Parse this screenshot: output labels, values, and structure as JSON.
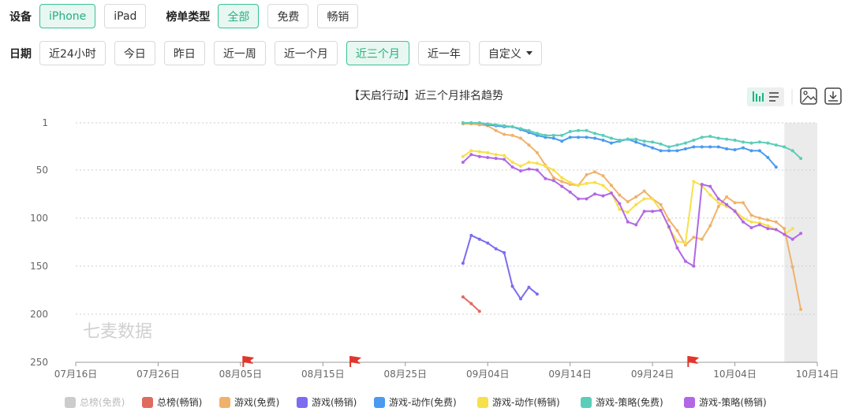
{
  "filters": {
    "device_label": "设备",
    "devices": [
      {
        "label": "iPhone",
        "active": true
      },
      {
        "label": "iPad",
        "active": false
      }
    ],
    "list_type_label": "榜单类型",
    "list_types": [
      {
        "label": "全部",
        "active": true
      },
      {
        "label": "免费",
        "active": false
      },
      {
        "label": "畅销",
        "active": false
      }
    ],
    "date_label": "日期",
    "dates": [
      {
        "label": "近24小时",
        "active": false
      },
      {
        "label": "今日",
        "active": false
      },
      {
        "label": "昨日",
        "active": false
      },
      {
        "label": "近一周",
        "active": false
      },
      {
        "label": "近一个月",
        "active": false
      },
      {
        "label": "近三个月",
        "active": true
      },
      {
        "label": "近一年",
        "active": false
      }
    ],
    "custom_label": "自定义"
  },
  "colors": {
    "accent": "#37c293",
    "gridline": "#cccccc",
    "shade": "#ebebeb",
    "flag": "#e0362c"
  },
  "icons": [
    "bar-chart-icon",
    "list-icon",
    "image-download-icon",
    "download-icon",
    "flag-icon"
  ],
  "chart_data": {
    "type": "line",
    "title": "【天启行动】近三个月排名趋势",
    "xlabel": "",
    "ylabel": "",
    "y_inverted": true,
    "ylim": [
      1,
      250
    ],
    "y_ticks": [
      "1",
      "50",
      "100",
      "150",
      "200",
      "250"
    ],
    "x_range": [
      "2024-07-16",
      "2024-10-14"
    ],
    "x_ticks": [
      "07月16日",
      "07月26日",
      "08月05日",
      "08月15日",
      "08月25日",
      "09月04日",
      "09月14日",
      "09月24日",
      "10月04日",
      "10月14日"
    ],
    "shaded_region": [
      "2024-10-10",
      "2024-10-14"
    ],
    "flags": [
      "2024-08-06",
      "2024-08-19",
      "2024-09-29"
    ],
    "grid": true,
    "legend_position": "bottom",
    "series": [
      {
        "name": "总榜(免费)",
        "color": "#cccccc",
        "disabled": true,
        "points": []
      },
      {
        "name": "总榜(畅销)",
        "color": "#e06a5e",
        "points": [
          [
            "2024-09-01",
            182
          ],
          [
            "2024-09-02",
            189
          ],
          [
            "2024-09-03",
            197
          ]
        ]
      },
      {
        "name": "游戏(免费)",
        "color": "#f0b26b",
        "points": [
          [
            "2024-09-01",
            2
          ],
          [
            "2024-09-02",
            2
          ],
          [
            "2024-09-03",
            3
          ],
          [
            "2024-09-04",
            4
          ],
          [
            "2024-09-05",
            9
          ],
          [
            "2024-09-06",
            13
          ],
          [
            "2024-09-07",
            14
          ],
          [
            "2024-09-08",
            17
          ],
          [
            "2024-09-09",
            24
          ],
          [
            "2024-09-10",
            32
          ],
          [
            "2024-09-11",
            45
          ],
          [
            "2024-09-12",
            58
          ],
          [
            "2024-09-13",
            62
          ],
          [
            "2024-09-14",
            65
          ],
          [
            "2024-09-15",
            66
          ],
          [
            "2024-09-16",
            55
          ],
          [
            "2024-09-17",
            52
          ],
          [
            "2024-09-18",
            56
          ],
          [
            "2024-09-19",
            66
          ],
          [
            "2024-09-20",
            76
          ],
          [
            "2024-09-21",
            83
          ],
          [
            "2024-09-22",
            78
          ],
          [
            "2024-09-23",
            72
          ],
          [
            "2024-09-24",
            80
          ],
          [
            "2024-09-25",
            86
          ],
          [
            "2024-09-26",
            102
          ],
          [
            "2024-09-27",
            113
          ],
          [
            "2024-09-28",
            128
          ],
          [
            "2024-09-29",
            120
          ],
          [
            "2024-09-30",
            122
          ],
          [
            "2024-10-01",
            108
          ],
          [
            "2024-10-02",
            88
          ],
          [
            "2024-10-03",
            78
          ],
          [
            "2024-10-04",
            84
          ],
          [
            "2024-10-05",
            84
          ],
          [
            "2024-10-06",
            97
          ],
          [
            "2024-10-07",
            100
          ],
          [
            "2024-10-08",
            102
          ],
          [
            "2024-10-09",
            104
          ],
          [
            "2024-10-10",
            111
          ],
          [
            "2024-10-11",
            151
          ],
          [
            "2024-10-12",
            195
          ]
        ]
      },
      {
        "name": "游戏(畅销)",
        "color": "#7b6cf0",
        "points": [
          [
            "2024-09-01",
            147
          ],
          [
            "2024-09-02",
            118
          ],
          [
            "2024-09-03",
            122
          ],
          [
            "2024-09-04",
            126
          ],
          [
            "2024-09-05",
            132
          ],
          [
            "2024-09-06",
            136
          ],
          [
            "2024-09-07",
            171
          ],
          [
            "2024-09-08",
            184
          ],
          [
            "2024-09-09",
            172
          ],
          [
            "2024-09-10",
            179
          ]
        ]
      },
      {
        "name": "游戏-动作(免费)",
        "color": "#4a9af0",
        "points": [
          [
            "2024-09-01",
            1
          ],
          [
            "2024-09-02",
            1
          ],
          [
            "2024-09-03",
            1
          ],
          [
            "2024-09-04",
            3
          ],
          [
            "2024-09-05",
            4
          ],
          [
            "2024-09-06",
            5
          ],
          [
            "2024-09-07",
            5
          ],
          [
            "2024-09-08",
            8
          ],
          [
            "2024-09-09",
            11
          ],
          [
            "2024-09-10",
            14
          ],
          [
            "2024-09-11",
            16
          ],
          [
            "2024-09-12",
            17
          ],
          [
            "2024-09-13",
            20
          ],
          [
            "2024-09-14",
            16
          ],
          [
            "2024-09-15",
            16
          ],
          [
            "2024-09-16",
            16
          ],
          [
            "2024-09-17",
            17
          ],
          [
            "2024-09-18",
            19
          ],
          [
            "2024-09-19",
            22
          ],
          [
            "2024-09-20",
            20
          ],
          [
            "2024-09-21",
            18
          ],
          [
            "2024-09-22",
            21
          ],
          [
            "2024-09-23",
            24
          ],
          [
            "2024-09-24",
            27
          ],
          [
            "2024-09-25",
            30
          ],
          [
            "2024-09-26",
            30
          ],
          [
            "2024-09-27",
            30
          ],
          [
            "2024-09-28",
            28
          ],
          [
            "2024-09-29",
            26
          ],
          [
            "2024-09-30",
            26
          ],
          [
            "2024-10-01",
            26
          ],
          [
            "2024-10-02",
            26
          ],
          [
            "2024-10-03",
            28
          ],
          [
            "2024-10-04",
            29
          ],
          [
            "2024-10-05",
            27
          ],
          [
            "2024-10-06",
            30
          ],
          [
            "2024-10-07",
            30
          ],
          [
            "2024-10-08",
            37
          ],
          [
            "2024-10-09",
            47
          ]
        ]
      },
      {
        "name": "游戏-动作(畅销)",
        "color": "#f7e04a",
        "points": [
          [
            "2024-09-01",
            36
          ],
          [
            "2024-09-02",
            30
          ],
          [
            "2024-09-03",
            31
          ],
          [
            "2024-09-04",
            32
          ],
          [
            "2024-09-05",
            34
          ],
          [
            "2024-09-06",
            35
          ],
          [
            "2024-09-07",
            42
          ],
          [
            "2024-09-08",
            46
          ],
          [
            "2024-09-09",
            42
          ],
          [
            "2024-09-10",
            43
          ],
          [
            "2024-09-11",
            46
          ],
          [
            "2024-09-12",
            50
          ],
          [
            "2024-09-13",
            58
          ],
          [
            "2024-09-14",
            63
          ],
          [
            "2024-09-15",
            66
          ],
          [
            "2024-09-16",
            64
          ],
          [
            "2024-09-17",
            63
          ],
          [
            "2024-09-18",
            66
          ],
          [
            "2024-09-19",
            74
          ],
          [
            "2024-09-20",
            91
          ],
          [
            "2024-09-21",
            94
          ],
          [
            "2024-09-22",
            86
          ],
          [
            "2024-09-23",
            80
          ],
          [
            "2024-09-24",
            80
          ],
          [
            "2024-09-25",
            92
          ],
          [
            "2024-09-26",
            110
          ],
          [
            "2024-09-27",
            124
          ],
          [
            "2024-09-28",
            126
          ],
          [
            "2024-09-29",
            62
          ],
          [
            "2024-09-30",
            66
          ],
          [
            "2024-10-01",
            76
          ],
          [
            "2024-10-02",
            84
          ],
          [
            "2024-10-03",
            88
          ],
          [
            "2024-10-04",
            92
          ],
          [
            "2024-10-05",
            100
          ],
          [
            "2024-10-06",
            104
          ],
          [
            "2024-10-07",
            105
          ],
          [
            "2024-10-08",
            108
          ],
          [
            "2024-10-09",
            112
          ],
          [
            "2024-10-10",
            117
          ],
          [
            "2024-10-11",
            111
          ]
        ]
      },
      {
        "name": "游戏-策略(免费)",
        "color": "#5ccdb9",
        "points": [
          [
            "2024-09-01",
            1
          ],
          [
            "2024-09-02",
            1
          ],
          [
            "2024-09-03",
            1
          ],
          [
            "2024-09-04",
            2
          ],
          [
            "2024-09-05",
            3
          ],
          [
            "2024-09-06",
            4
          ],
          [
            "2024-09-07",
            5
          ],
          [
            "2024-09-08",
            7
          ],
          [
            "2024-09-09",
            9
          ],
          [
            "2024-09-10",
            12
          ],
          [
            "2024-09-11",
            14
          ],
          [
            "2024-09-12",
            14
          ],
          [
            "2024-09-13",
            14
          ],
          [
            "2024-09-14",
            10
          ],
          [
            "2024-09-15",
            9
          ],
          [
            "2024-09-16",
            9
          ],
          [
            "2024-09-17",
            12
          ],
          [
            "2024-09-18",
            14
          ],
          [
            "2024-09-19",
            17
          ],
          [
            "2024-09-20",
            19
          ],
          [
            "2024-09-21",
            18
          ],
          [
            "2024-09-22",
            18
          ],
          [
            "2024-09-23",
            20
          ],
          [
            "2024-09-24",
            21
          ],
          [
            "2024-09-25",
            23
          ],
          [
            "2024-09-26",
            26
          ],
          [
            "2024-09-27",
            24
          ],
          [
            "2024-09-28",
            22
          ],
          [
            "2024-09-29",
            19
          ],
          [
            "2024-09-30",
            16
          ],
          [
            "2024-10-01",
            15
          ],
          [
            "2024-10-02",
            17
          ],
          [
            "2024-10-03",
            18
          ],
          [
            "2024-10-04",
            19
          ],
          [
            "2024-10-05",
            21
          ],
          [
            "2024-10-06",
            22
          ],
          [
            "2024-10-07",
            21
          ],
          [
            "2024-10-08",
            22
          ],
          [
            "2024-10-09",
            24
          ],
          [
            "2024-10-10",
            26
          ],
          [
            "2024-10-11",
            30
          ],
          [
            "2024-10-12",
            38
          ]
        ]
      },
      {
        "name": "游戏-策略(畅销)",
        "color": "#b267e6",
        "points": [
          [
            "2024-09-01",
            42
          ],
          [
            "2024-09-02",
            34
          ],
          [
            "2024-09-03",
            36
          ],
          [
            "2024-09-04",
            37
          ],
          [
            "2024-09-05",
            38
          ],
          [
            "2024-09-06",
            39
          ],
          [
            "2024-09-07",
            47
          ],
          [
            "2024-09-08",
            51
          ],
          [
            "2024-09-09",
            49
          ],
          [
            "2024-09-10",
            50
          ],
          [
            "2024-09-11",
            59
          ],
          [
            "2024-09-12",
            61
          ],
          [
            "2024-09-13",
            67
          ],
          [
            "2024-09-14",
            73
          ],
          [
            "2024-09-15",
            80
          ],
          [
            "2024-09-16",
            80
          ],
          [
            "2024-09-17",
            75
          ],
          [
            "2024-09-18",
            77
          ],
          [
            "2024-09-19",
            74
          ],
          [
            "2024-09-20",
            85
          ],
          [
            "2024-09-21",
            104
          ],
          [
            "2024-09-22",
            107
          ],
          [
            "2024-09-23",
            93
          ],
          [
            "2024-09-24",
            93
          ],
          [
            "2024-09-25",
            92
          ],
          [
            "2024-09-26",
            109
          ],
          [
            "2024-09-27",
            131
          ],
          [
            "2024-09-28",
            145
          ],
          [
            "2024-09-29",
            150
          ],
          [
            "2024-09-30",
            65
          ],
          [
            "2024-10-01",
            67
          ],
          [
            "2024-10-02",
            80
          ],
          [
            "2024-10-03",
            86
          ],
          [
            "2024-10-04",
            93
          ],
          [
            "2024-10-05",
            104
          ],
          [
            "2024-10-06",
            110
          ],
          [
            "2024-10-07",
            107
          ],
          [
            "2024-10-08",
            111
          ],
          [
            "2024-10-09",
            112
          ],
          [
            "2024-10-10",
            117
          ],
          [
            "2024-10-11",
            122
          ],
          [
            "2024-10-12",
            116
          ]
        ]
      }
    ]
  }
}
